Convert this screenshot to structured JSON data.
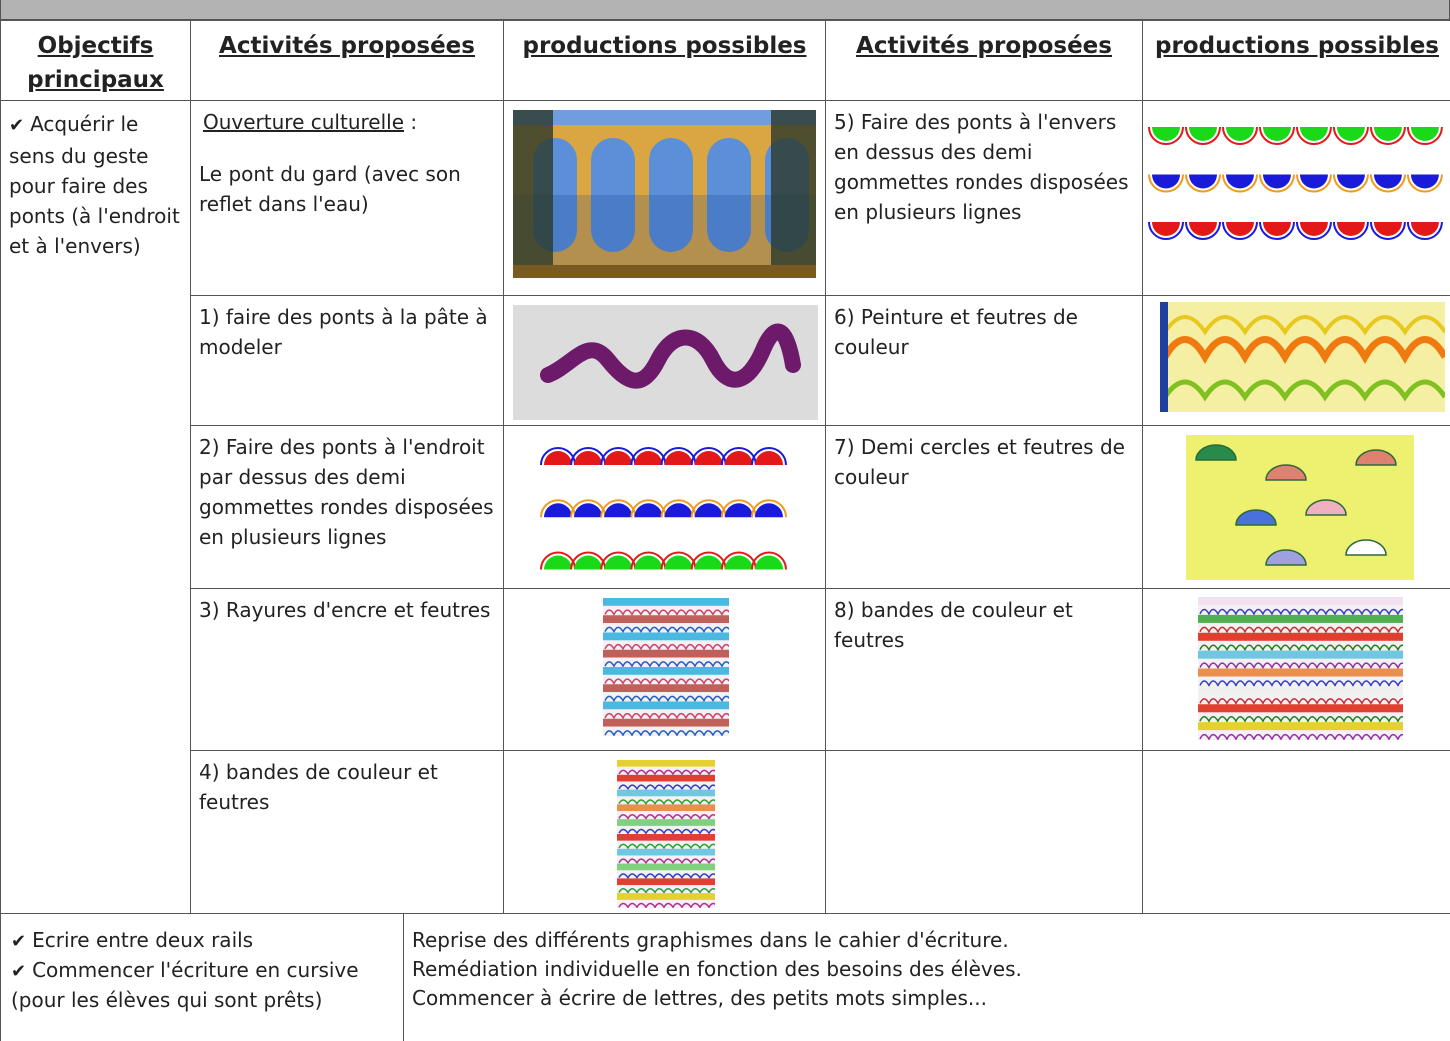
{
  "header": {
    "columns": [
      "Objectifs principaux",
      "Activités proposées",
      "productions possibles",
      "Activités proposées",
      "productions possibles"
    ]
  },
  "objectives": [
    "Acquérir le sens du geste pour faire des ponts (à l'endroit et à l'envers)"
  ],
  "left_activities": [
    {
      "label": "Ouverture culturelle",
      "separator": ":",
      "text": "Le pont du gard (avec son reflet dans l'eau)"
    },
    {
      "text": "1) faire des ponts à la pâte à modeler"
    },
    {
      "text": "2) Faire des ponts à l'endroit par dessus des demi gommettes rondes disposées en plusieurs lignes"
    },
    {
      "text": "3) Rayures d'encre et feutres"
    },
    {
      "text": "4) bandes de couleur et feutres"
    }
  ],
  "right_activities": [
    {
      "text": "5) Faire des ponts à l'envers en dessus des demi gommettes rondes disposées en plusieurs lignes"
    },
    {
      "text": "6) Peinture et feutres de couleur"
    },
    {
      "text": "7) Demi cercles et feutres de couleur"
    },
    {
      "text": "8) bandes de couleur et feutres"
    }
  ],
  "bottom": {
    "objectives": [
      "Ecrire entre deux rails",
      "Commencer l'écriture en cursive (pour les élèves qui sont prêts)"
    ],
    "lines": [
      "Reprise des différents graphismes dans le cahier d'écriture.",
      "Remédiation individuelle en fonction des besoins des élèves.",
      "Commencer à écrire de lettres, des petits mots simples..."
    ]
  }
}
